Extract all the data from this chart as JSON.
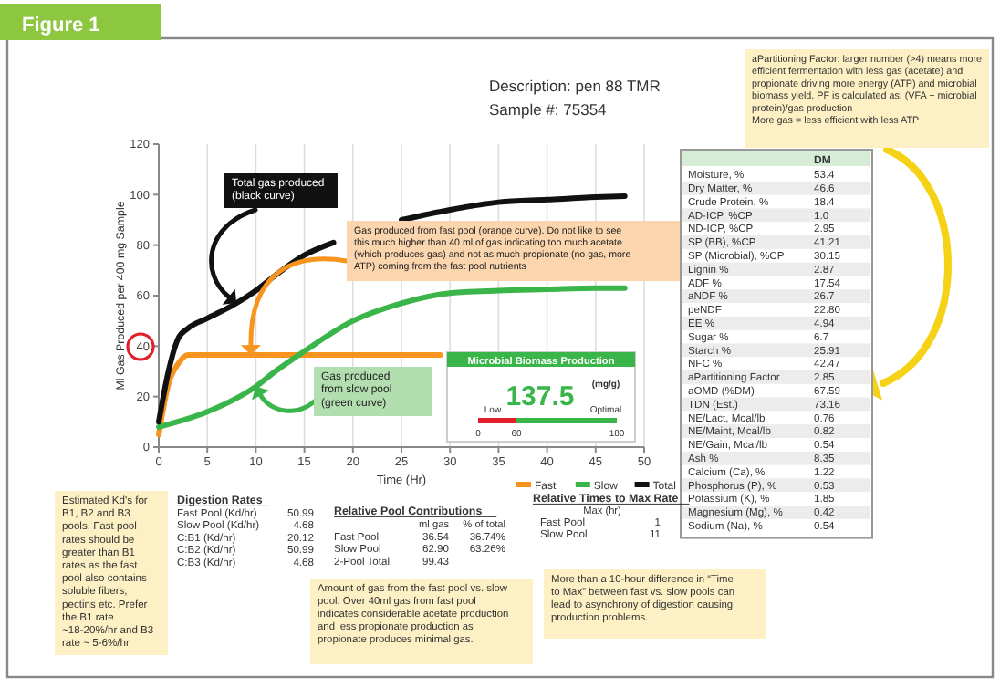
{
  "chart_data": [
    {
      "type": "line",
      "title": "Description: pen 88 TMR",
      "subtitle": "Sample #: 75354",
      "xlabel": "Time (Hr)",
      "ylabel": "Ml Gas Produced per 400 mg Sample",
      "xlim": [
        0,
        50
      ],
      "xticks": [
        0,
        5,
        10,
        15,
        20,
        25,
        30,
        35,
        40,
        45,
        50
      ],
      "ylim": [
        0,
        120
      ],
      "yticks": [
        0,
        20,
        40,
        60,
        80,
        100,
        120
      ],
      "grid": "x",
      "legend": "bottom",
      "series": [
        {
          "name": "Fast",
          "color": "#f7941d",
          "x": [
            0,
            1,
            2,
            3,
            5,
            10,
            15,
            20,
            25,
            29
          ],
          "values": [
            5,
            25,
            33,
            36.5,
            36.5,
            36.5,
            36.5,
            36.5,
            36.5,
            36.5
          ]
        },
        {
          "name": "Slow",
          "color": "#39b54a",
          "x": [
            0,
            5,
            10,
            12,
            15,
            20,
            25,
            30,
            35,
            40,
            45,
            48
          ],
          "values": [
            8,
            14,
            24,
            30,
            38,
            50,
            57,
            61,
            62,
            62.5,
            63,
            63
          ]
        },
        {
          "name": "Total",
          "color": "#111111",
          "x": [
            0,
            1,
            2,
            3,
            5,
            8,
            10,
            12,
            15,
            18,
            20,
            25,
            30,
            35,
            40,
            45,
            48
          ],
          "values": [
            10,
            30,
            43,
            47,
            51,
            57,
            62,
            68,
            76,
            81,
            null,
            90,
            94,
            97,
            98,
            99,
            99.4
          ]
        }
      ],
      "annotations": [
        {
          "text": "Total gas produced (black curve)",
          "x": 8,
          "y": 57
        },
        {
          "text": "Gas produced from fast pool (orange curve). Do not like to see this much higher than 40 ml of gas indicating too much acetate (which produces gas) and not as much propionate (no gas, more ATP) coming from the fast pool nutrients",
          "x": 9.5,
          "y": 36.5
        },
        {
          "text": "Gas produced from slow pool (green curve)",
          "x": 10,
          "y": 24
        }
      ]
    },
    {
      "type": "other",
      "title": "Microbial Biomass Production",
      "annotations": [
        "137.5",
        "(mg/g)",
        "Low",
        "Optimal",
        "0",
        "60",
        "180"
      ]
    },
    {
      "type": "other",
      "title": "DM",
      "annotations": [
        "Moisture, %",
        "53.4",
        "Dry Matter, %",
        "46.6",
        "Crude Protein, %",
        "18.4",
        "AD-ICP, %CP",
        "1.0",
        "ND-ICP, %CP",
        "2.95",
        "SP (BB), %CP",
        "41.21",
        "SP (Microbial), %CP",
        "30.15",
        "Lignin %",
        "2.87",
        "ADF %",
        "17.54",
        "aNDF %",
        "26.7",
        "peNDF",
        "22.80",
        "EE %",
        "4.94",
        "Sugar %",
        "6.7",
        "Starch %",
        "25.91",
        "NFC %",
        "42.47",
        "aPartitioning Factor",
        "2.85",
        "aOMD (%DM)",
        "67.59",
        "TDN (Est.)",
        "73.16",
        "NE/Lact, Mcal/lb",
        "0.76",
        "NE/Maint, Mcal/lb",
        "0.82",
        "NE/Gain, Mcal/lb",
        "0.54",
        "Ash %",
        "8.35",
        "Calcium (Ca), %",
        "1.22",
        "Phosphorus (P), %",
        "0.53",
        "Potassium (K), %",
        "1.85",
        "Magnesium (Mg), %",
        "0.42",
        "Sodium (Na), %",
        "0.54"
      ]
    },
    {
      "type": "other",
      "title": "Digestion Rates",
      "annotations": [
        "Fast Pool (Kd/hr)",
        "50.99",
        "Slow Pool (Kd/hr)",
        "4.68",
        "C:B1 (Kd/hr)",
        "20.12",
        "C:B2 (Kd/hr)",
        "50.99",
        "C:B3 (Kd/hr)",
        "4.68"
      ]
    },
    {
      "type": "other",
      "title": "Relative Pool Contributions",
      "annotations": [
        "ml gas",
        "% of total",
        "Fast Pool",
        "36.54",
        "36.74%",
        "Slow Pool",
        "62.90",
        "63.26%",
        "2-Pool Total",
        "99.43"
      ]
    },
    {
      "type": "other",
      "title": "Relative Times to Max Rate",
      "annotations": [
        "Max (hr)",
        "Fast Pool",
        "1",
        "Slow Pool",
        "11"
      ]
    },
    {
      "type": "other",
      "title": "Figure 1",
      "annotations": [
        "aPartitioning Factor: larger number (>4) means more efficient fermentation with less gas (acetate) and propionate driving more energy (ATP) and microbial biomass yield. PF is calculated as: (VFA + microbial protein)/gas production\nMore gas = less efficient with less ATP",
        "Estimated Kd's for B1, B2 and B3 pools. Fast pool rates should be greater than B1 rates as the fast pool also contains soluble fibers, pectins etc. Prefer the B1 rate ~18-20%/hr and B3 rate ~ 5-6%/hr",
        "Amount of gas from the fast pool vs. slow pool. Over 40ml gas from fast pool indicates considerable acetate production and less propionate production as propionate produces minimal gas.",
        "More than a 10-hour difference in “Time to Max” between fast vs. slow pools can lead to asynchrony of digestion causing production problems."
      ]
    }
  ]
}
